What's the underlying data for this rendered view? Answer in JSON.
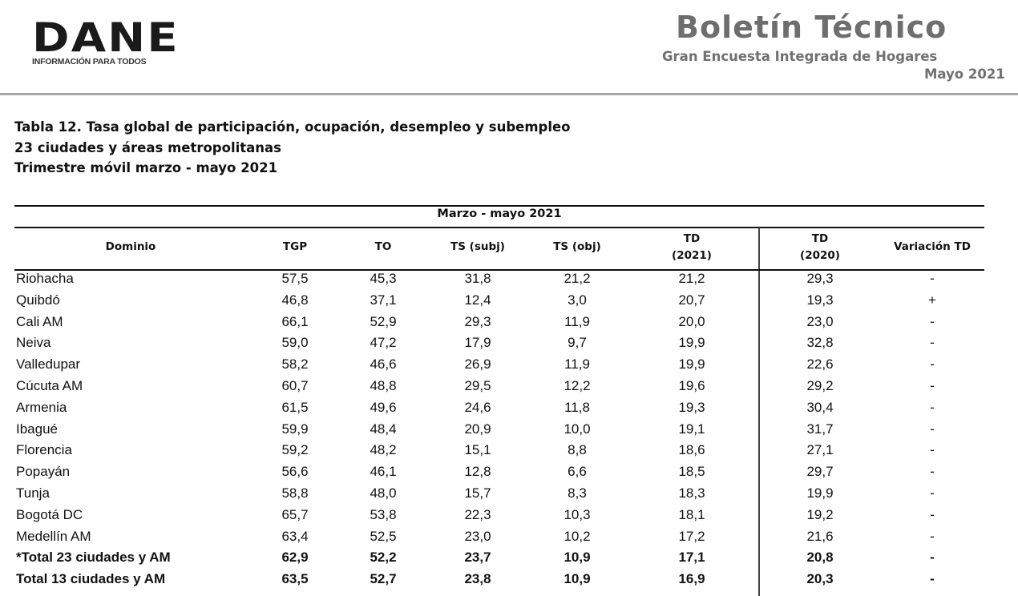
{
  "header": {
    "logo_text": "DANE",
    "logo_tagline": "INFORMACIÓN PARA TODOS",
    "bulletin_title": "Boletín Técnico",
    "bulletin_subtitle": "Gran Encuesta Integrada de Hogares",
    "bulletin_date": "Mayo 2021"
  },
  "caption": {
    "line1": "Tabla 12. Tasa global de participación, ocupación, desempleo y subempleo",
    "line2": "23 ciudades y áreas metropolitanas",
    "line3": "Trimestre móvil marzo - mayo 2021"
  },
  "table": {
    "period_header": "Marzo - mayo  2021",
    "columns": {
      "dominio": "Dominio",
      "tgp": "TGP",
      "to": "TO",
      "ts_subj": "TS (subj)",
      "ts_obj": "TS (obj)",
      "td2021_a": "TD",
      "td2021_b": "(2021)",
      "td2020_a": "TD",
      "td2020_b": "(2020)",
      "variacion": "Variación TD"
    },
    "rows": [
      {
        "dominio": "Riohacha",
        "tgp": "57,5",
        "to": "45,3",
        "ts_subj": "31,8",
        "ts_obj": "21,2",
        "td2021": "21,2",
        "td2020": "29,3",
        "var": "-"
      },
      {
        "dominio": "Quibdó",
        "tgp": "46,8",
        "to": "37,1",
        "ts_subj": "12,4",
        "ts_obj": "3,0",
        "td2021": "20,7",
        "td2020": "19,3",
        "var": "+"
      },
      {
        "dominio": "Cali AM",
        "tgp": "66,1",
        "to": "52,9",
        "ts_subj": "29,3",
        "ts_obj": "11,9",
        "td2021": "20,0",
        "td2020": "23,0",
        "var": "-"
      },
      {
        "dominio": "Neiva",
        "tgp": "59,0",
        "to": "47,2",
        "ts_subj": "17,9",
        "ts_obj": "9,7",
        "td2021": "19,9",
        "td2020": "32,8",
        "var": "-"
      },
      {
        "dominio": "Valledupar",
        "tgp": "58,2",
        "to": "46,6",
        "ts_subj": "26,9",
        "ts_obj": "11,9",
        "td2021": "19,9",
        "td2020": "22,6",
        "var": "-"
      },
      {
        "dominio": "Cúcuta AM",
        "tgp": "60,7",
        "to": "48,8",
        "ts_subj": "29,5",
        "ts_obj": "12,2",
        "td2021": "19,6",
        "td2020": "29,2",
        "var": "-"
      },
      {
        "dominio": "Armenia",
        "tgp": "61,5",
        "to": "49,6",
        "ts_subj": "24,6",
        "ts_obj": "11,8",
        "td2021": "19,3",
        "td2020": "30,4",
        "var": "-"
      },
      {
        "dominio": "Ibagué",
        "tgp": "59,9",
        "to": "48,4",
        "ts_subj": "20,9",
        "ts_obj": "10,0",
        "td2021": "19,1",
        "td2020": "31,7",
        "var": "-"
      },
      {
        "dominio": "Florencia",
        "tgp": "59,2",
        "to": "48,2",
        "ts_subj": "15,1",
        "ts_obj": "8,8",
        "td2021": "18,6",
        "td2020": "27,1",
        "var": "-"
      },
      {
        "dominio": "Popayán",
        "tgp": "56,6",
        "to": "46,1",
        "ts_subj": "12,8",
        "ts_obj": "6,6",
        "td2021": "18,5",
        "td2020": "29,7",
        "var": "-"
      },
      {
        "dominio": "Tunja",
        "tgp": "58,8",
        "to": "48,0",
        "ts_subj": "15,7",
        "ts_obj": "8,3",
        "td2021": "18,3",
        "td2020": "19,9",
        "var": "-"
      },
      {
        "dominio": "Bogotá DC",
        "tgp": "65,7",
        "to": "53,8",
        "ts_subj": "22,3",
        "ts_obj": "10,3",
        "td2021": "18,1",
        "td2020": "19,2",
        "var": "-"
      },
      {
        "dominio": "Medellín AM",
        "tgp": "63,4",
        "to": "52,5",
        "ts_subj": "23,0",
        "ts_obj": "10,2",
        "td2021": "17,2",
        "td2020": "21,6",
        "var": "-"
      },
      {
        "dominio": "*Total 23 ciudades y AM",
        "tgp": "62,9",
        "to": "52,2",
        "ts_subj": "23,7",
        "ts_obj": "10,9",
        "td2021": "17,1",
        "td2020": "20,8",
        "var": "-"
      },
      {
        "dominio": "Total 13 ciudades y AM",
        "tgp": "63,5",
        "to": "52,7",
        "ts_subj": "23,8",
        "ts_obj": "10,9",
        "td2021": "16,9",
        "td2020": "20,3",
        "var": "-"
      }
    ]
  }
}
